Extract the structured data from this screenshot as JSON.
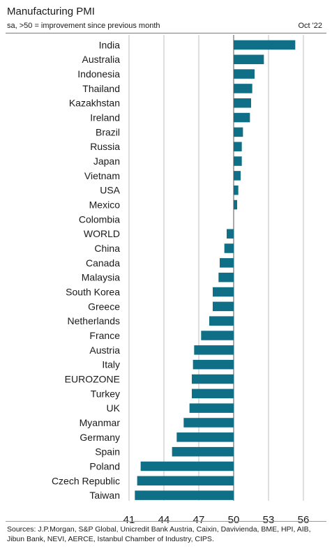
{
  "header": {
    "title": "Manufacturing PMI",
    "subtitle": "sa, >50 = improvement since previous month",
    "date": "Oct '22"
  },
  "footer": {
    "source": "Sources: J.P.Morgan, S&P Global, Unicredit Bank Austria, Caixin, Davivienda, BME, HPI, AIB, Jibun Bank, NEVI, AERCE, Istanbul Chamber of Industry, CIPS."
  },
  "chart_data": {
    "type": "bar",
    "orientation": "horizontal",
    "baseline": 50,
    "categories": [
      "India",
      "Australia",
      "Indonesia",
      "Thailand",
      "Kazakhstan",
      "Ireland",
      "Brazil",
      "Russia",
      "Japan",
      "Vietnam",
      "USA",
      "Mexico",
      "Colombia",
      "WORLD",
      "China",
      "Canada",
      "Malaysia",
      "South Korea",
      "Greece",
      "Netherlands",
      "France",
      "Austria",
      "Italy",
      "EUROZONE",
      "Turkey",
      "UK",
      "Myanmar",
      "Germany",
      "Spain",
      "Poland",
      "Czech Republic",
      "Taiwan"
    ],
    "values": [
      55.3,
      52.6,
      51.8,
      51.6,
      51.5,
      51.4,
      50.8,
      50.7,
      50.7,
      50.6,
      50.4,
      50.3,
      50.0,
      49.4,
      49.2,
      48.8,
      48.7,
      48.2,
      48.2,
      47.9,
      47.2,
      46.6,
      46.5,
      46.4,
      46.4,
      46.2,
      45.7,
      45.1,
      44.7,
      42.0,
      41.7,
      41.5
    ],
    "xlim": [
      41,
      56
    ],
    "xticks": [
      41,
      44,
      47,
      50,
      53,
      56
    ],
    "grid": true,
    "bar_color": "#0e6f86"
  }
}
